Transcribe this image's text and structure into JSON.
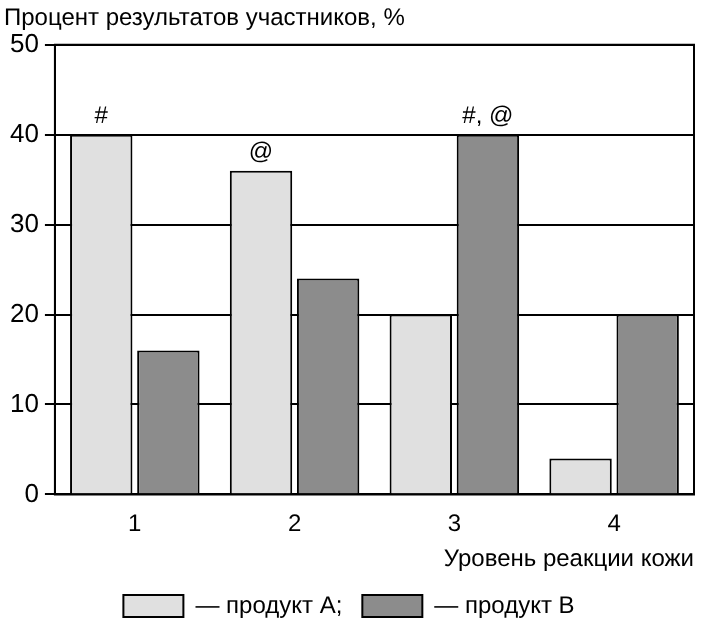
{
  "chart_data": {
    "type": "bar",
    "ylabel": "Процент результатов участников, %",
    "xlabel": "Уровень реакции кожи",
    "categories": [
      "1",
      "2",
      "3",
      "4"
    ],
    "series": [
      {
        "name": "— продукт A;",
        "color": "#e0e0e0",
        "values": [
          40,
          36,
          20,
          4
        ]
      },
      {
        "name": "— продукт B",
        "color": "#8c8c8c",
        "values": [
          16,
          24,
          40,
          20
        ]
      }
    ],
    "ylim": [
      0,
      50
    ],
    "yticks": [
      0,
      10,
      20,
      30,
      40,
      50
    ],
    "grid": "y",
    "legend": "bottom",
    "annotations": [
      {
        "text": "#",
        "x": "1",
        "y": 40
      },
      {
        "text": "@",
        "x": "2",
        "y": 36
      },
      {
        "text": "#, @",
        "x": "3",
        "y": 40
      }
    ]
  }
}
